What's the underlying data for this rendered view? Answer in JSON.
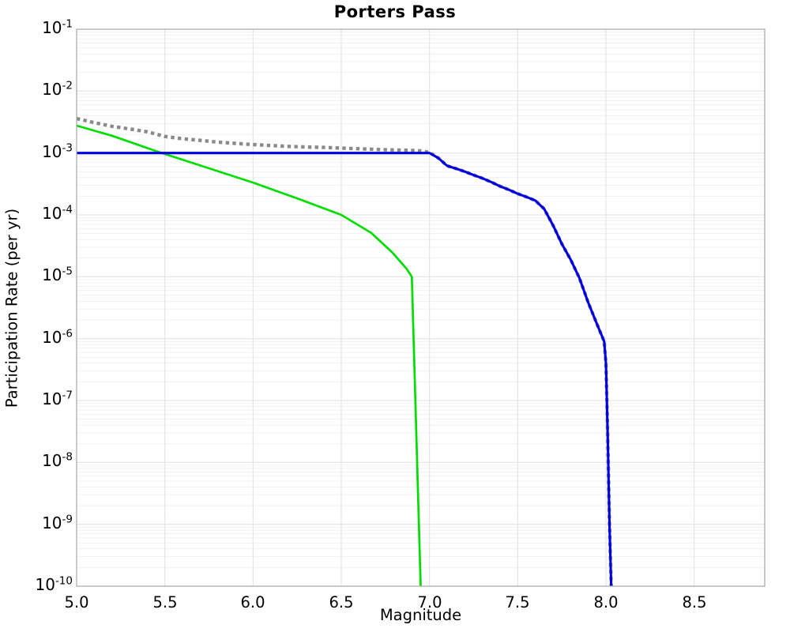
{
  "title": "Porters Pass",
  "chart_data": {
    "type": "line",
    "title": "Porters Pass",
    "xlabel": "Magnitude",
    "ylabel": "Participation Rate (per yr)",
    "xlim": [
      5.0,
      8.9
    ],
    "ylim_log10": [
      -10,
      -1
    ],
    "grid": {
      "major": true,
      "minor_log": true
    },
    "legend": "none",
    "colors": {
      "grid_major": "#e0e0e0",
      "grid_minor": "#f1f1f1",
      "border": "#a6a6a6",
      "text": "#000000"
    },
    "x_ticks": [
      {
        "label": "5.0",
        "value": 5.0
      },
      {
        "label": "5.5",
        "value": 5.5
      },
      {
        "label": "6.0",
        "value": 6.0
      },
      {
        "label": "6.5",
        "value": 6.5
      },
      {
        "label": "7.0",
        "value": 7.0
      },
      {
        "label": "7.5",
        "value": 7.5
      },
      {
        "label": "8.0",
        "value": 8.0
      },
      {
        "label": "8.5",
        "value": 8.5
      }
    ],
    "y_ticks": [
      {
        "base": "10",
        "exp": "-1"
      },
      {
        "base": "10",
        "exp": "-2"
      },
      {
        "base": "10",
        "exp": "-3"
      },
      {
        "base": "10",
        "exp": "-4"
      },
      {
        "base": "10",
        "exp": "-5"
      },
      {
        "base": "10",
        "exp": "-6"
      },
      {
        "base": "10",
        "exp": "-7"
      },
      {
        "base": "10",
        "exp": "-8"
      },
      {
        "base": "10",
        "exp": "-9"
      },
      {
        "base": "10",
        "exp": "-10"
      }
    ],
    "series": [
      {
        "name": "gray-dotted-total",
        "color": "#8a8a8a",
        "style": "dotted",
        "width": 4.4,
        "dash": "4.4 4.3",
        "points": [
          [
            5.0,
            0.0036
          ],
          [
            5.1,
            0.0031
          ],
          [
            5.2,
            0.0027
          ],
          [
            5.3,
            0.00245
          ],
          [
            5.4,
            0.0022
          ],
          [
            5.5,
            0.00185
          ],
          [
            5.6,
            0.0017
          ],
          [
            5.7,
            0.0016
          ],
          [
            5.8,
            0.0015
          ],
          [
            5.9,
            0.00143
          ],
          [
            6.0,
            0.00137
          ],
          [
            6.1,
            0.00132
          ],
          [
            6.2,
            0.00128
          ],
          [
            6.3,
            0.00125
          ],
          [
            6.4,
            0.00123
          ],
          [
            6.5,
            0.0012
          ],
          [
            6.6,
            0.00117
          ],
          [
            6.7,
            0.00114
          ],
          [
            6.8,
            0.00112
          ],
          [
            6.9,
            0.0011
          ],
          [
            6.95,
            0.00108
          ],
          [
            7.0,
            0.00103
          ],
          [
            7.05,
            0.00083
          ],
          [
            7.1,
            0.00062
          ],
          [
            7.15,
            0.00056
          ],
          [
            7.2,
            0.0005
          ],
          [
            7.25,
            0.00044
          ],
          [
            7.3,
            0.00039
          ],
          [
            7.35,
            0.00034
          ],
          [
            7.4,
            0.00029
          ],
          [
            7.45,
            0.000255
          ],
          [
            7.5,
            0.00022
          ],
          [
            7.55,
            0.000195
          ],
          [
            7.6,
            0.00017
          ],
          [
            7.65,
            0.000125
          ],
          [
            7.7,
            6.8e-05
          ],
          [
            7.75,
            3.4e-05
          ],
          [
            7.8,
            1.9e-05
          ],
          [
            7.85,
            9.5e-06
          ],
          [
            7.9,
            3.8e-06
          ],
          [
            7.95,
            1.7e-06
          ],
          [
            7.99,
            9e-07
          ],
          [
            8.0,
            4e-07
          ],
          [
            8.01,
            3e-08
          ],
          [
            8.02,
            1e-09
          ],
          [
            8.03,
            1e-10
          ]
        ]
      },
      {
        "name": "green-solid",
        "color": "#00dd00",
        "style": "solid",
        "width": 2.7,
        "dash": "",
        "points": [
          [
            5.0,
            0.00277
          ],
          [
            5.2,
            0.0019
          ],
          [
            5.46,
            0.00105
          ],
          [
            5.7,
            0.00063
          ],
          [
            6.0,
            0.000333
          ],
          [
            6.25,
            0.000185
          ],
          [
            6.5,
            0.0001
          ],
          [
            6.67,
            5.1e-05
          ],
          [
            6.79,
            2.45e-05
          ],
          [
            6.87,
            1.35e-05
          ],
          [
            6.9,
            1e-05
          ],
          [
            6.95,
            1e-10
          ]
        ]
      },
      {
        "name": "blue-solid",
        "color": "#0000e0",
        "style": "solid",
        "width": 3.1,
        "dash": "",
        "points": [
          [
            5.0,
            0.001
          ],
          [
            7.0,
            0.001
          ],
          [
            7.05,
            0.00083
          ],
          [
            7.1,
            0.00062
          ],
          [
            7.15,
            0.00056
          ],
          [
            7.2,
            0.0005
          ],
          [
            7.25,
            0.00044
          ],
          [
            7.3,
            0.00039
          ],
          [
            7.35,
            0.00034
          ],
          [
            7.4,
            0.00029
          ],
          [
            7.45,
            0.000255
          ],
          [
            7.5,
            0.00022
          ],
          [
            7.55,
            0.000195
          ],
          [
            7.6,
            0.00017
          ],
          [
            7.65,
            0.000125
          ],
          [
            7.7,
            6.8e-05
          ],
          [
            7.75,
            3.4e-05
          ],
          [
            7.8,
            1.9e-05
          ],
          [
            7.85,
            9.5e-06
          ],
          [
            7.9,
            3.8e-06
          ],
          [
            7.95,
            1.7e-06
          ],
          [
            7.99,
            9e-07
          ],
          [
            8.0,
            4e-07
          ],
          [
            8.01,
            3e-08
          ],
          [
            8.02,
            1e-09
          ],
          [
            8.03,
            1e-10
          ]
        ]
      }
    ]
  }
}
